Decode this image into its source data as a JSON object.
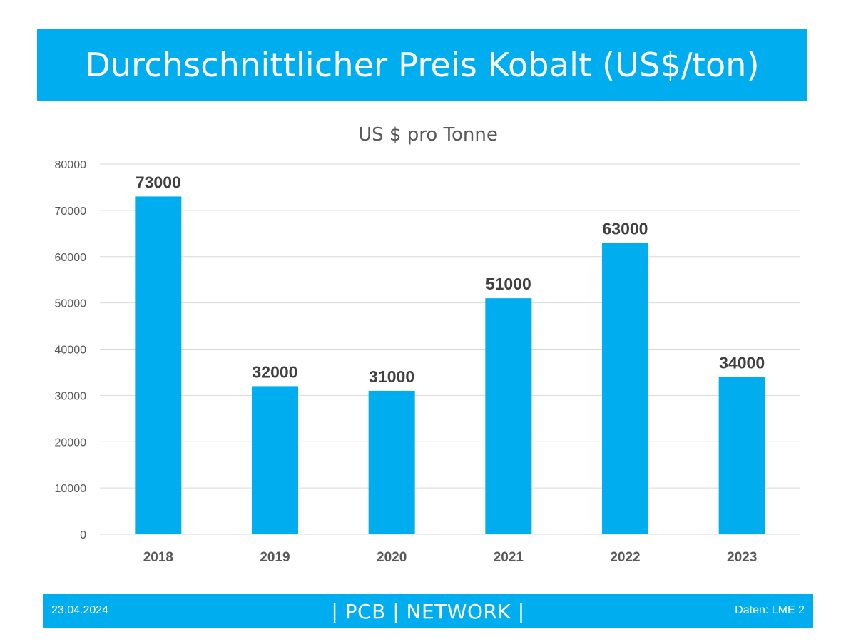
{
  "header": {
    "title": "Durchschnittlicher Preis Kobalt (US$/ton)"
  },
  "chart_data": {
    "type": "bar",
    "title": "US $ pro Tonne",
    "categories": [
      "2018",
      "2019",
      "2020",
      "2021",
      "2022",
      "2023"
    ],
    "values": [
      73000,
      32000,
      31000,
      51000,
      63000,
      34000
    ],
    "data_labels": [
      "73000",
      "32000",
      "31000",
      "51000",
      "63000",
      "34000"
    ],
    "ylim": [
      0,
      80000
    ],
    "yticks": [
      "0",
      "10000",
      "20000",
      "30000",
      "40000",
      "50000",
      "60000",
      "70000",
      "80000"
    ],
    "grid": true,
    "legend": "none",
    "bar_color": "#00AEEF"
  },
  "footer": {
    "date": "23.04.2024",
    "brand": "| PCB | NETWORK |",
    "source": "Daten: LME 2"
  },
  "colors": {
    "accent": "#00AEEF",
    "gridline": "#D9D9D9",
    "label_text": "#404040",
    "tick_text": "#595959"
  }
}
